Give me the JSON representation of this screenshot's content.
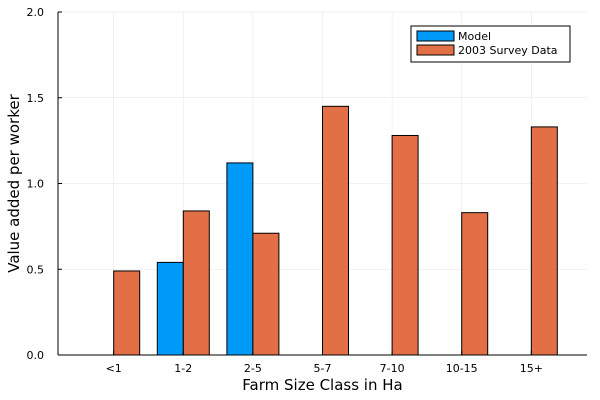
{
  "chart_data": {
    "type": "bar",
    "xlabel": "Farm Size Class in Ha",
    "ylabel": "Value added per worker",
    "categories": [
      "<1",
      "1-2",
      "2-5",
      "5-7",
      "7-10",
      "10-15",
      "15+"
    ],
    "series": [
      {
        "name": "Model",
        "color": "#009af9",
        "values": [
          null,
          0.54,
          1.12,
          null,
          null,
          null,
          null
        ]
      },
      {
        "name": "2003 Survey Data",
        "color": "#e26f46",
        "values": [
          0.49,
          0.84,
          0.71,
          1.45,
          1.28,
          0.83,
          1.33
        ]
      }
    ],
    "ylim": [
      0,
      2
    ],
    "yticks": [
      0.0,
      0.5,
      1.0,
      1.5,
      2.0
    ],
    "ytick_labels": [
      "0.0",
      "0.5",
      "1.0",
      "1.5",
      "2.0"
    ],
    "grid": true,
    "legend_position": "top-right"
  }
}
